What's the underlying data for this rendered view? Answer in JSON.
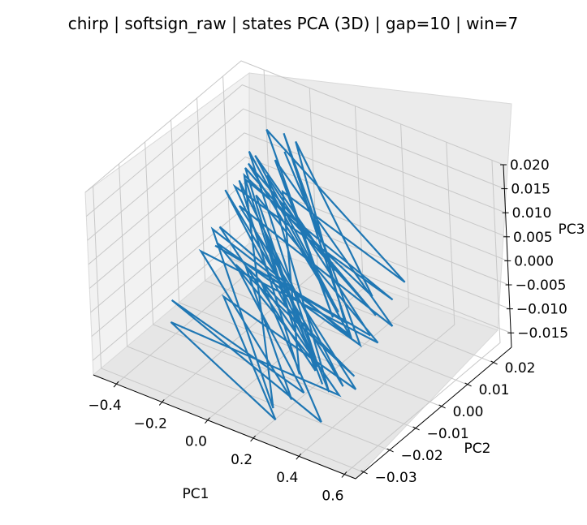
{
  "chart_data": {
    "type": "line",
    "projection": "3d",
    "title": "chirp | softsign_raw | states PCA (3D) | gap=10 | win=7",
    "xlabel": "PC1",
    "ylabel": "PC2",
    "zlabel": "PC3",
    "xticks": [
      "−0.4",
      "−0.2",
      "0.0",
      "0.2",
      "0.4",
      "0.6"
    ],
    "yticks": [
      "−0.03",
      "−0.02",
      "−0.01",
      "0.00",
      "0.01",
      "0.02"
    ],
    "zticks": [
      "−0.015",
      "−0.010",
      "−0.005",
      "0.000",
      "0.005",
      "0.010",
      "0.015",
      "0.020"
    ],
    "xlim": [
      -0.5,
      0.65
    ],
    "ylim": [
      -0.033,
      0.027
    ],
    "zlim": [
      -0.018,
      0.02
    ],
    "grid": true,
    "series_color": "#1f77b4",
    "series": [
      {
        "points": [
          [
            -0.12,
            0.01,
            0.016
          ],
          [
            0.38,
            -0.015,
            0.012
          ],
          [
            -0.3,
            0.014,
            0.01
          ],
          [
            0.45,
            -0.02,
            0.007
          ],
          [
            -0.38,
            0.018,
            0.005
          ],
          [
            0.52,
            -0.012,
            0.004
          ],
          [
            -0.25,
            0.006,
            0.012
          ],
          [
            0.3,
            -0.024,
            0.002
          ],
          [
            -0.42,
            0.02,
            0.0
          ],
          [
            0.55,
            -0.008,
            0.006
          ],
          [
            -0.18,
            -0.004,
            0.014
          ],
          [
            0.42,
            -0.026,
            -0.002
          ],
          [
            -0.35,
            0.016,
            0.009
          ],
          [
            0.48,
            -0.018,
            0.001
          ],
          [
            -0.4,
            0.008,
            -0.004
          ],
          [
            0.36,
            -0.022,
            -0.006
          ],
          [
            -0.28,
            0.012,
            0.003
          ],
          [
            0.5,
            -0.01,
            -0.003
          ],
          [
            -0.44,
            0.004,
            -0.008
          ],
          [
            0.32,
            -0.028,
            -0.01
          ],
          [
            -0.22,
            0.002,
            -0.006
          ],
          [
            0.46,
            -0.016,
            -0.008
          ],
          [
            -0.36,
            0.01,
            -0.012
          ],
          [
            0.28,
            -0.02,
            -0.013
          ],
          [
            -0.46,
            -0.006,
            -0.014
          ],
          [
            0.4,
            -0.024,
            -0.015
          ],
          [
            -0.2,
            0.006,
            -0.011
          ],
          [
            0.34,
            -0.012,
            -0.016
          ],
          [
            -0.42,
            -0.01,
            -0.016
          ],
          [
            0.22,
            -0.026,
            -0.017
          ],
          [
            -0.3,
            0.0,
            -0.013
          ],
          [
            0.44,
            -0.014,
            -0.012
          ],
          [
            -0.38,
            0.014,
            -0.002
          ],
          [
            0.52,
            -0.006,
            -0.001
          ],
          [
            -0.26,
            0.018,
            0.008
          ],
          [
            0.4,
            -0.018,
            0.004
          ],
          [
            -0.34,
            0.022,
            0.011
          ],
          [
            0.56,
            -0.004,
            0.008
          ],
          [
            -0.16,
            0.012,
            0.006
          ],
          [
            0.36,
            -0.028,
            -0.004
          ],
          [
            -0.4,
            0.016,
            0.002
          ],
          [
            0.48,
            -0.022,
            -0.007
          ],
          [
            -0.32,
            0.004,
            0.007
          ],
          [
            0.3,
            -0.016,
            -0.009
          ],
          [
            -0.44,
            0.01,
            -0.009
          ],
          [
            0.42,
            -0.01,
            -0.005
          ],
          [
            -0.24,
            0.02,
            0.013
          ],
          [
            0.5,
            -0.02,
            0.003
          ],
          [
            -0.36,
            0.002,
            -0.001
          ],
          [
            0.26,
            -0.03,
            -0.012
          ],
          [
            -0.28,
            0.008,
            0.009
          ],
          [
            0.46,
            -0.008,
            0.005
          ],
          [
            -0.14,
            0.016,
            0.015
          ],
          [
            0.38,
            -0.012,
            0.0
          ],
          [
            -0.4,
            0.006,
            -0.007
          ],
          [
            0.54,
            -0.016,
            0.002
          ],
          [
            -0.3,
            0.018,
            0.004
          ],
          [
            0.44,
            -0.024,
            -0.008
          ],
          [
            -0.22,
            0.01,
            -0.003
          ],
          [
            0.34,
            -0.018,
            -0.011
          ]
        ]
      }
    ]
  }
}
